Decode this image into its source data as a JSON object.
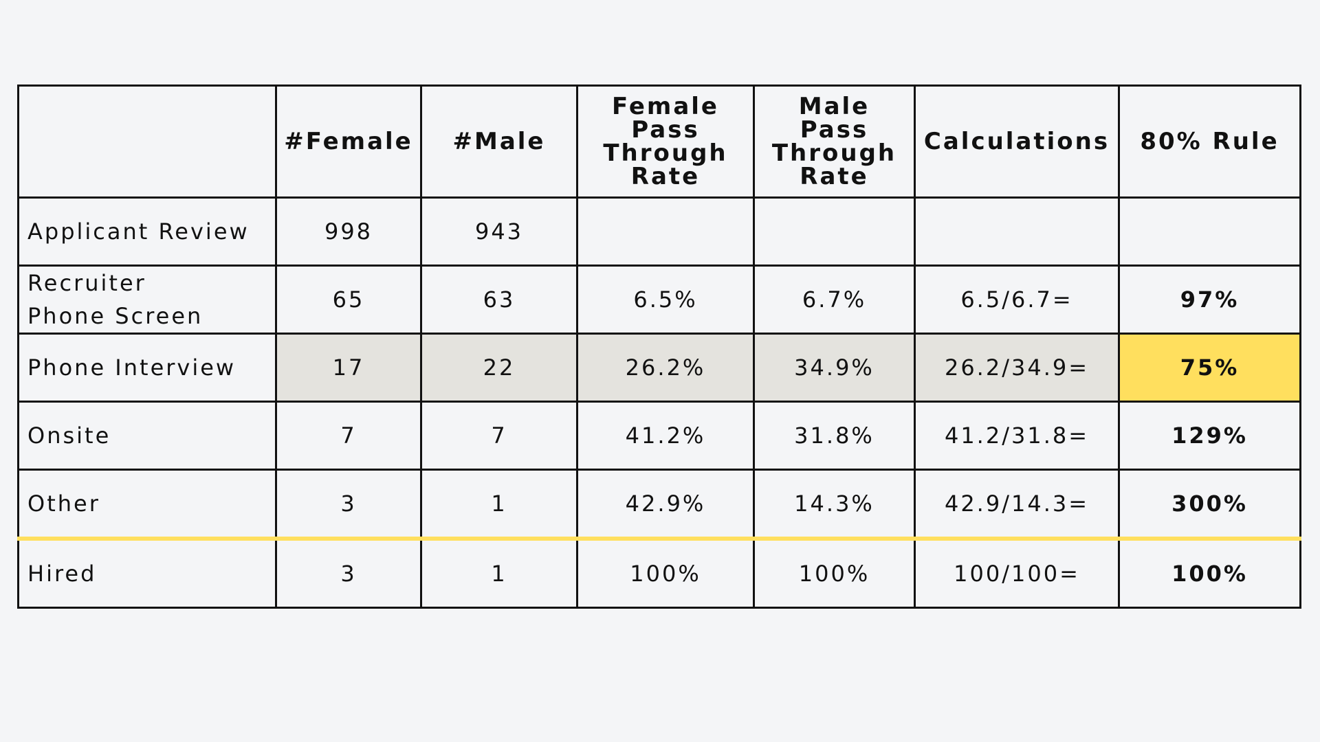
{
  "headers": [
    {
      "lines": [
        ""
      ]
    },
    {
      "lines": [
        "#Female"
      ]
    },
    {
      "lines": [
        "#Male"
      ]
    },
    {
      "lines": [
        "Female",
        "Pass",
        "Through",
        "Rate"
      ]
    },
    {
      "lines": [
        "Male",
        "Pass",
        "Through",
        "Rate"
      ]
    },
    {
      "lines": [
        "Calculations"
      ]
    },
    {
      "lines": [
        "80% Rule"
      ]
    }
  ],
  "rows": [
    {
      "stage": [
        "Applicant Review"
      ],
      "female": "998",
      "male": "943",
      "female_rate": "",
      "male_rate": "",
      "calc": "",
      "rule": ""
    },
    {
      "stage": [
        "Recruiter",
        "Phone Screen"
      ],
      "female": "65",
      "male": "63",
      "female_rate": "6.5%",
      "male_rate": "6.7%",
      "calc": "6.5/6.7=",
      "rule": "97%"
    },
    {
      "stage": [
        "Phone Interview"
      ],
      "female": "17",
      "male": "22",
      "female_rate": "26.2%",
      "male_rate": "34.9%",
      "calc": "26.2/34.9=",
      "rule": "75%"
    },
    {
      "stage": [
        "Onsite"
      ],
      "female": "7",
      "male": "7",
      "female_rate": "41.2%",
      "male_rate": "31.8%",
      "calc": "41.2/31.8=",
      "rule": "129%"
    },
    {
      "stage": [
        "Other"
      ],
      "female": "3",
      "male": "1",
      "female_rate": "42.9%",
      "male_rate": "14.3%",
      "calc": "42.9/14.3=",
      "rule": "300%"
    },
    {
      "stage": [
        "Hired"
      ],
      "female": "3",
      "male": "1",
      "female_rate": "100%",
      "male_rate": "100%",
      "calc": "100/100=",
      "rule": "100%"
    }
  ],
  "colors": {
    "background": "#f4f5f7",
    "highlight_row": "#e4e3de",
    "highlight_rule": "#ffdf5e",
    "separator_line": "#ffdf5e",
    "border": "#111111"
  }
}
